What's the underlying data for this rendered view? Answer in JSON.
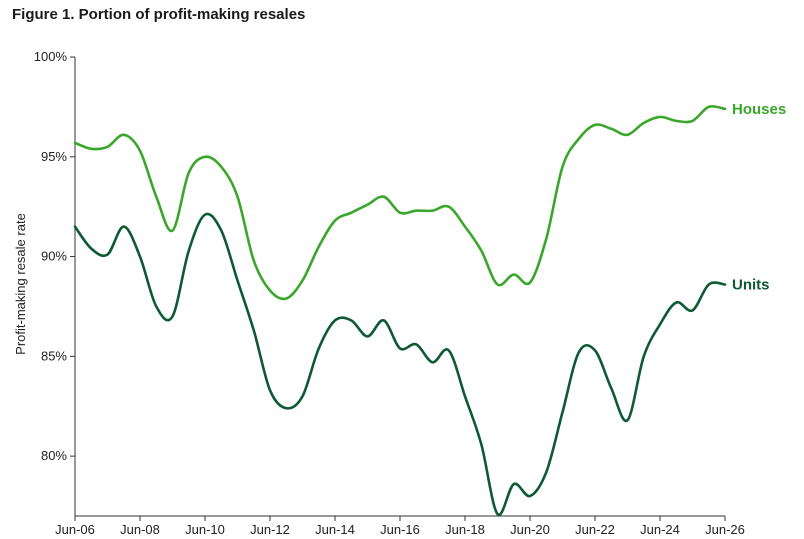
{
  "chart_data": {
    "type": "line",
    "title": "Figure 1. Portion of profit-making resales",
    "ylabel": "Profit-making resale rate",
    "xlabel": "",
    "x_ticks": [
      {
        "label": "Jun-06",
        "x": 2006.0
      },
      {
        "label": "Jun-08",
        "x": 2008.0
      },
      {
        "label": "Jun-10",
        "x": 2010.0
      },
      {
        "label": "Jun-12",
        "x": 2012.0
      },
      {
        "label": "Jun-14",
        "x": 2014.0
      },
      {
        "label": "Jun-16",
        "x": 2016.0
      },
      {
        "label": "Jun-18",
        "x": 2018.0
      },
      {
        "label": "Jun-20",
        "x": 2020.0
      },
      {
        "label": "Jun-22",
        "x": 2022.0
      },
      {
        "label": "Jun-24",
        "x": 2024.0
      },
      {
        "label": "Jun-26",
        "x": 2026.0
      }
    ],
    "y_ticks": [
      {
        "label": "80%",
        "value": 80
      },
      {
        "label": "85%",
        "value": 85
      },
      {
        "label": "90%",
        "value": 90
      },
      {
        "label": "95%",
        "value": 95
      },
      {
        "label": "100%",
        "value": 100
      }
    ],
    "xlim": [
      2006.0,
      2026.0
    ],
    "ylim": [
      77.0,
      100.0
    ],
    "grid": false,
    "series": [
      {
        "name": "Houses",
        "color": "#3aa62b",
        "points": [
          [
            2006.0,
            95.7
          ],
          [
            2006.5,
            95.4
          ],
          [
            2007.0,
            95.5
          ],
          [
            2007.5,
            96.1
          ],
          [
            2008.0,
            95.3
          ],
          [
            2008.5,
            93.0
          ],
          [
            2009.0,
            91.3
          ],
          [
            2009.5,
            94.2
          ],
          [
            2010.0,
            95.0
          ],
          [
            2010.5,
            94.5
          ],
          [
            2011.0,
            93.0
          ],
          [
            2011.5,
            89.8
          ],
          [
            2012.0,
            88.3
          ],
          [
            2012.5,
            87.9
          ],
          [
            2013.0,
            88.8
          ],
          [
            2013.5,
            90.5
          ],
          [
            2014.0,
            91.8
          ],
          [
            2014.5,
            92.2
          ],
          [
            2015.0,
            92.6
          ],
          [
            2015.5,
            93.0
          ],
          [
            2016.0,
            92.2
          ],
          [
            2016.5,
            92.3
          ],
          [
            2017.0,
            92.3
          ],
          [
            2017.5,
            92.5
          ],
          [
            2018.0,
            91.5
          ],
          [
            2018.5,
            90.3
          ],
          [
            2019.0,
            88.6
          ],
          [
            2019.5,
            89.1
          ],
          [
            2020.0,
            88.7
          ],
          [
            2020.5,
            90.9
          ],
          [
            2021.0,
            94.5
          ],
          [
            2021.5,
            95.9
          ],
          [
            2022.0,
            96.6
          ],
          [
            2022.5,
            96.4
          ],
          [
            2023.0,
            96.1
          ],
          [
            2023.5,
            96.7
          ],
          [
            2024.0,
            97.0
          ],
          [
            2024.5,
            96.8
          ],
          [
            2025.0,
            96.8
          ],
          [
            2025.5,
            97.5
          ],
          [
            2026.0,
            97.4
          ]
        ]
      },
      {
        "name": "Units",
        "color": "#0d5a34",
        "points": [
          [
            2006.0,
            91.5
          ],
          [
            2006.5,
            90.4
          ],
          [
            2007.0,
            90.1
          ],
          [
            2007.5,
            91.5
          ],
          [
            2008.0,
            90.0
          ],
          [
            2008.5,
            87.5
          ],
          [
            2009.0,
            87.0
          ],
          [
            2009.5,
            90.3
          ],
          [
            2010.0,
            92.1
          ],
          [
            2010.5,
            91.3
          ],
          [
            2011.0,
            88.8
          ],
          [
            2011.5,
            86.3
          ],
          [
            2012.0,
            83.3
          ],
          [
            2012.5,
            82.4
          ],
          [
            2013.0,
            83.0
          ],
          [
            2013.5,
            85.4
          ],
          [
            2014.0,
            86.8
          ],
          [
            2014.5,
            86.8
          ],
          [
            2015.0,
            86.0
          ],
          [
            2015.5,
            86.8
          ],
          [
            2016.0,
            85.4
          ],
          [
            2016.5,
            85.6
          ],
          [
            2017.0,
            84.7
          ],
          [
            2017.5,
            85.3
          ],
          [
            2018.0,
            83.0
          ],
          [
            2018.5,
            80.6
          ],
          [
            2019.0,
            77.1
          ],
          [
            2019.5,
            78.6
          ],
          [
            2020.0,
            78.0
          ],
          [
            2020.5,
            79.2
          ],
          [
            2021.0,
            82.2
          ],
          [
            2021.5,
            85.2
          ],
          [
            2022.0,
            85.3
          ],
          [
            2022.5,
            83.4
          ],
          [
            2023.0,
            81.8
          ],
          [
            2023.5,
            85.0
          ],
          [
            2024.0,
            86.6
          ],
          [
            2024.5,
            87.7
          ],
          [
            2025.0,
            87.3
          ],
          [
            2025.5,
            88.6
          ],
          [
            2026.0,
            88.6
          ]
        ]
      }
    ]
  }
}
